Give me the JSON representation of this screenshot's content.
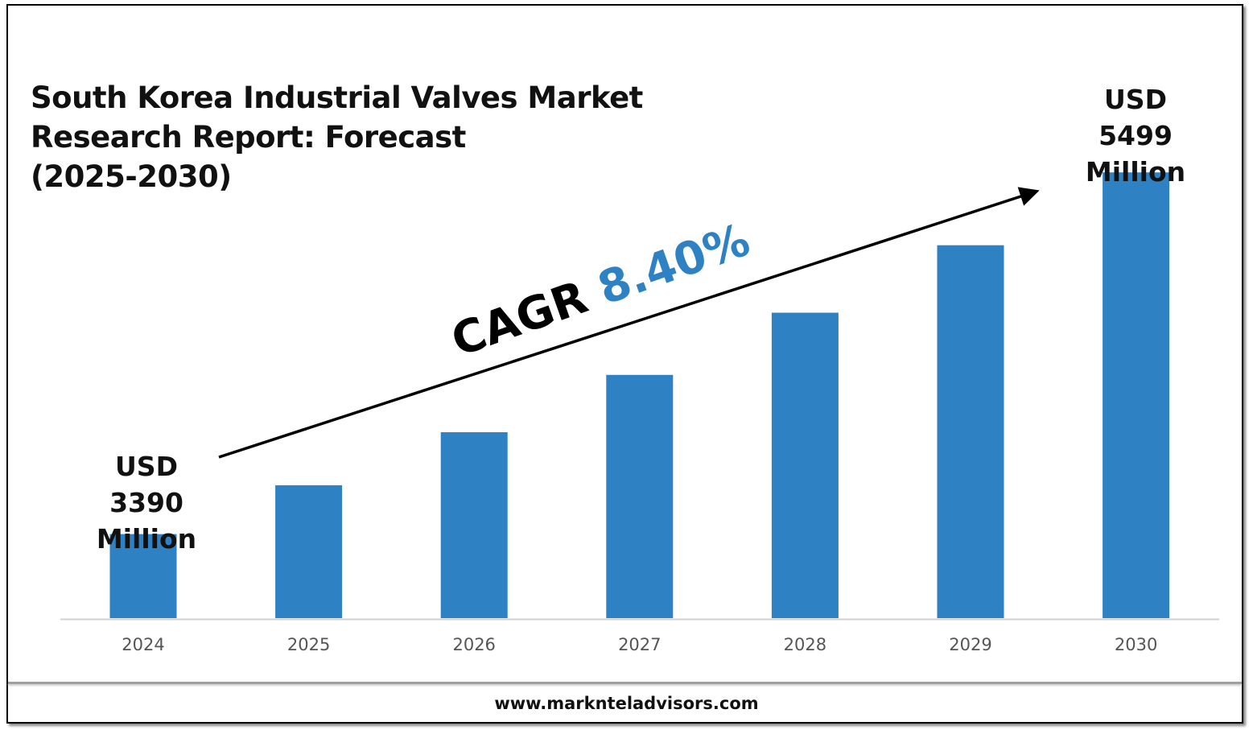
{
  "title_lines": [
    "South Korea Industrial Valves Market",
    "Research Report: Forecast",
    "(2025-2030)"
  ],
  "callouts": {
    "start": [
      "USD",
      "3390",
      "Million"
    ],
    "end": [
      "USD",
      "5499",
      "Million"
    ]
  },
  "cagr": {
    "label": "CAGR",
    "value": "8.40%"
  },
  "footer": {
    "url": "www.marknteladvisors.com"
  },
  "colors": {
    "bar": "#2e82c4",
    "cagr_value": "#2e82c4",
    "axis": "#d0d0d0",
    "text": "#111111"
  },
  "chart_data": {
    "type": "bar",
    "title": "South Korea Industrial Valves Market Research Report: Forecast (2025-2030)",
    "xlabel": "",
    "ylabel": "",
    "unit": "USD Million",
    "categories": [
      "2024",
      "2025",
      "2026",
      "2027",
      "2028",
      "2029",
      "2030"
    ],
    "values": [
      3390,
      3675,
      3984,
      4318,
      4681,
      5074,
      5499
    ],
    "ylim": [
      2900,
      5650
    ],
    "grid": false,
    "legend": "none",
    "annotations": [
      {
        "text": "USD 3390 Million",
        "category": "2024"
      },
      {
        "text": "USD 5499 Million",
        "category": "2030"
      },
      {
        "text": "CAGR 8.40%",
        "kind": "trend-arrow"
      }
    ]
  }
}
